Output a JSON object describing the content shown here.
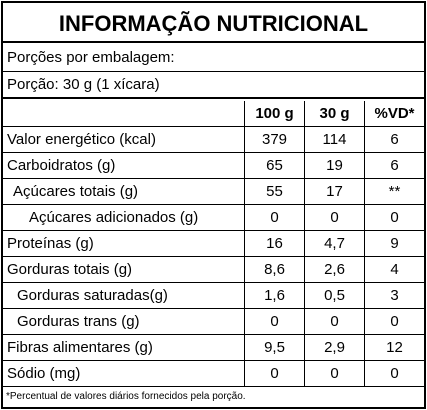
{
  "title": "INFORMAÇÃO NUTRICIONAL",
  "servings": [
    "Porções por embalagem:",
    "Porção: 30 g (1 xícara)"
  ],
  "table": {
    "header": [
      "100 g",
      "30 g",
      "%VD*"
    ],
    "rows": [
      [
        "Valor energético (kcal)",
        "379",
        "114",
        "6"
      ],
      [
        "Carboidratos (g)",
        "65",
        "19",
        "6"
      ],
      [
        "Açúcares totais (g)",
        "55",
        "17",
        "**"
      ],
      [
        "Açúcares adicionados (g)",
        "0",
        "0",
        "0"
      ],
      [
        "Proteínas (g)",
        "16",
        "4,7",
        "9"
      ],
      [
        "Gorduras totais (g)",
        "8,6",
        "2,6",
        "4"
      ],
      [
        "Gorduras saturadas(g)",
        "1,6",
        "0,5",
        "3"
      ],
      [
        "Gorduras trans (g)",
        "0",
        "0",
        "0"
      ],
      [
        "Fibras alimentares (g)",
        "9,5",
        "2,9",
        "12"
      ],
      [
        "Sódio (mg)",
        "0",
        "0",
        "0"
      ]
    ]
  },
  "footnote": "*Percentual de valores diários fornecidos pela porção."
}
